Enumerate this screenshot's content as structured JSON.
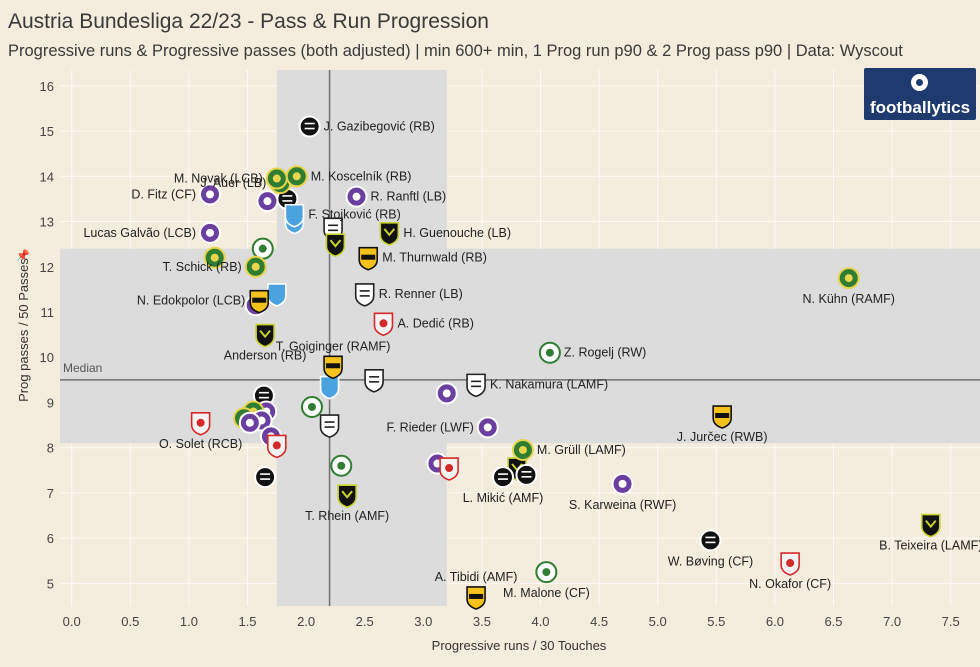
{
  "title": "Austria Bundesliga 22/23 - Pass & Run Progression",
  "subtitle": "Progressive runs & Progressive passes (both adjusted)  | min 600+ min, 1 Prog run p90 & 2 Prog pass p90 | Data: Wyscout",
  "logo_text": "footballytics",
  "colors": {
    "background": "#f4ecdc",
    "shaded_band": "#dcdcdc",
    "median_line": "#707070",
    "grid": "#ffffff"
  },
  "chart_data": {
    "type": "scatter",
    "xlabel": "Progressive runs / 30 Touches",
    "ylabel": "Prog passes / 50 Passes",
    "xlim": [
      -0.1,
      7.75
    ],
    "ylim": [
      4.5,
      16.35
    ],
    "x_ticks": [
      "0.0",
      "0.5",
      "1.0",
      "1.5",
      "2.0",
      "2.5",
      "3.0",
      "3.5",
      "4.0",
      "4.5",
      "5.0",
      "5.5",
      "6.0",
      "6.5",
      "7.0",
      "7.5"
    ],
    "y_ticks": [
      "5",
      "6",
      "7",
      "8",
      "9",
      "10",
      "11",
      "12",
      "13",
      "14",
      "15",
      "16"
    ],
    "median_label": "Median",
    "median_x": 2.2,
    "median_y": 9.5,
    "shaded_x_band": [
      1.75,
      3.2
    ],
    "shaded_y_band": [
      8.1,
      12.4
    ],
    "grid": true,
    "labeled_points": [
      {
        "label": "J. Gazibegović (RB)",
        "x": 2.03,
        "y": 15.1,
        "club": "Sturm Graz",
        "side": "right"
      },
      {
        "label": "J. Auer (LB)",
        "x": 1.78,
        "y": 13.85,
        "club": "Rapid Wien",
        "side": "left"
      },
      {
        "label": "M. Novak (LCB)",
        "x": 1.75,
        "y": 13.95,
        "club": "Rapid Wien",
        "side": "left"
      },
      {
        "label": "M. Koscelník (RB)",
        "x": 1.92,
        "y": 14.0,
        "club": "Rapid Wien",
        "side": "right"
      },
      {
        "label": "D. Fitz (CF)",
        "x": 1.18,
        "y": 13.6,
        "club": "Austria Wien",
        "side": "left"
      },
      {
        "label": "R. Ranftl (LB)",
        "x": 2.43,
        "y": 13.55,
        "club": "Austria Wien",
        "side": "right"
      },
      {
        "label": "F. Stojković (RB)",
        "x": 1.9,
        "y": 13.15,
        "club": "Hartberg",
        "side": "right"
      },
      {
        "label": "Lucas Galvão (LCB)",
        "x": 1.18,
        "y": 12.75,
        "club": "Austria Wien",
        "side": "left"
      },
      {
        "label": "H. Guenouche (LB)",
        "x": 2.71,
        "y": 12.75,
        "club": "Wolfsberger AC",
        "side": "right"
      },
      {
        "label": "M. Thurnwald (RB)",
        "x": 2.53,
        "y": 12.2,
        "club": "Altach",
        "side": "right"
      },
      {
        "label": "T. Schick (RB)",
        "x": 1.57,
        "y": 12.0,
        "club": "Rapid Wien",
        "side": "left"
      },
      {
        "label": "N. Kühn (RAMF)",
        "x": 6.63,
        "y": 11.75,
        "club": "Rapid Wien",
        "side": "below"
      },
      {
        "label": "R. Renner (LB)",
        "x": 2.5,
        "y": 11.4,
        "club": "LASK",
        "side": "right"
      },
      {
        "label": "N. Edokpolor (LCB)",
        "x": 1.6,
        "y": 11.25,
        "club": "Altach",
        "side": "left"
      },
      {
        "label": "A. Dedić (RB)",
        "x": 2.66,
        "y": 10.75,
        "club": "RB Salzburg",
        "side": "right"
      },
      {
        "label": "Z. Rogelj (RW)",
        "x": 4.08,
        "y": 10.1,
        "club": "WSG Tirol",
        "side": "right"
      },
      {
        "label": "Anderson (RB)",
        "x": 1.65,
        "y": 10.5,
        "club": "Wolfsberger AC",
        "side": "below"
      },
      {
        "label": "T. Goiginger (RAMF)",
        "x": 2.23,
        "y": 9.8,
        "club": "Altach",
        "side": "above"
      },
      {
        "label": "K. Nakamura (LAMF)",
        "x": 3.45,
        "y": 9.4,
        "club": "LASK",
        "side": "right"
      },
      {
        "label": "J. Jurčec (RWB)",
        "x": 5.55,
        "y": 8.7,
        "club": "Altach",
        "side": "below"
      },
      {
        "label": "O. Solet (RCB)",
        "x": 1.1,
        "y": 8.55,
        "club": "RB Salzburg",
        "side": "below"
      },
      {
        "label": "F. Rieder (LWF)",
        "x": 3.55,
        "y": 8.45,
        "club": "Austria Wien",
        "side": "left"
      },
      {
        "label": "M. Grüll (LAMF)",
        "x": 3.85,
        "y": 7.95,
        "club": "Rapid Wien",
        "side": "right"
      },
      {
        "label": "T. Rhein (AMF)",
        "x": 2.35,
        "y": 6.95,
        "club": "Wolfsberger AC",
        "side": "below"
      },
      {
        "label": "L. Mikić (AMF)",
        "x": 3.68,
        "y": 7.35,
        "club": "Sturm Graz",
        "side": "below"
      },
      {
        "label": "S. Karweina (RWF)",
        "x": 4.7,
        "y": 7.2,
        "club": "Austria Wien",
        "side": "below"
      },
      {
        "label": "B. Teixeira (LAMF)",
        "x": 7.33,
        "y": 6.3,
        "club": "Wolfsberger AC",
        "side": "below"
      },
      {
        "label": "W. Bøving (CF)",
        "x": 5.45,
        "y": 5.95,
        "club": "Sturm Graz",
        "side": "below"
      },
      {
        "label": "N. Okafor (CF)",
        "x": 6.13,
        "y": 5.45,
        "club": "RB Salzburg",
        "side": "below"
      },
      {
        "label": "A. Tibidi (AMF)",
        "x": 3.45,
        "y": 4.7,
        "club": "Altach",
        "side": "above"
      },
      {
        "label": "M. Malone (CF)",
        "x": 4.05,
        "y": 5.25,
        "club": "WSG Tirol",
        "side": "below"
      }
    ],
    "unlabeled_points": [
      {
        "x": 1.84,
        "y": 13.5,
        "club": "Sturm Graz"
      },
      {
        "x": 1.67,
        "y": 13.45,
        "club": "Austria Wien"
      },
      {
        "x": 1.9,
        "y": 13.0,
        "club": "Hartberg"
      },
      {
        "x": 2.23,
        "y": 12.85,
        "club": "LASK"
      },
      {
        "x": 2.25,
        "y": 12.5,
        "club": "Wolfsberger AC"
      },
      {
        "x": 1.63,
        "y": 12.4,
        "club": "WSG Tirol"
      },
      {
        "x": 1.22,
        "y": 12.2,
        "club": "Rapid Wien"
      },
      {
        "x": 1.75,
        "y": 11.4,
        "club": "Hartberg"
      },
      {
        "x": 1.57,
        "y": 11.15,
        "club": "Austria Wien"
      },
      {
        "x": 2.2,
        "y": 9.35,
        "club": "Hartberg"
      },
      {
        "x": 2.58,
        "y": 9.5,
        "club": "LASK"
      },
      {
        "x": 3.2,
        "y": 9.2,
        "club": "Austria Wien"
      },
      {
        "x": 1.64,
        "y": 9.15,
        "club": "Sturm Graz"
      },
      {
        "x": 1.66,
        "y": 8.8,
        "club": "Austria Wien"
      },
      {
        "x": 1.55,
        "y": 8.8,
        "club": "Rapid Wien"
      },
      {
        "x": 1.47,
        "y": 8.65,
        "club": "Rapid Wien"
      },
      {
        "x": 1.62,
        "y": 8.6,
        "club": "Austria Wien"
      },
      {
        "x": 1.52,
        "y": 8.55,
        "club": "Austria Wien"
      },
      {
        "x": 2.05,
        "y": 8.9,
        "club": "WSG Tirol"
      },
      {
        "x": 2.2,
        "y": 8.5,
        "club": "LASK"
      },
      {
        "x": 1.7,
        "y": 8.25,
        "club": "Austria Wien"
      },
      {
        "x": 1.75,
        "y": 8.05,
        "club": "RB Salzburg"
      },
      {
        "x": 3.12,
        "y": 7.65,
        "club": "Austria Wien"
      },
      {
        "x": 3.22,
        "y": 7.55,
        "club": "RB Salzburg"
      },
      {
        "x": 2.3,
        "y": 7.6,
        "club": "WSG Tirol"
      },
      {
        "x": 1.65,
        "y": 7.35,
        "club": "Sturm Graz"
      },
      {
        "x": 3.8,
        "y": 7.55,
        "club": "Wolfsberger AC"
      },
      {
        "x": 3.88,
        "y": 7.4,
        "club": "Sturm Graz"
      }
    ]
  }
}
